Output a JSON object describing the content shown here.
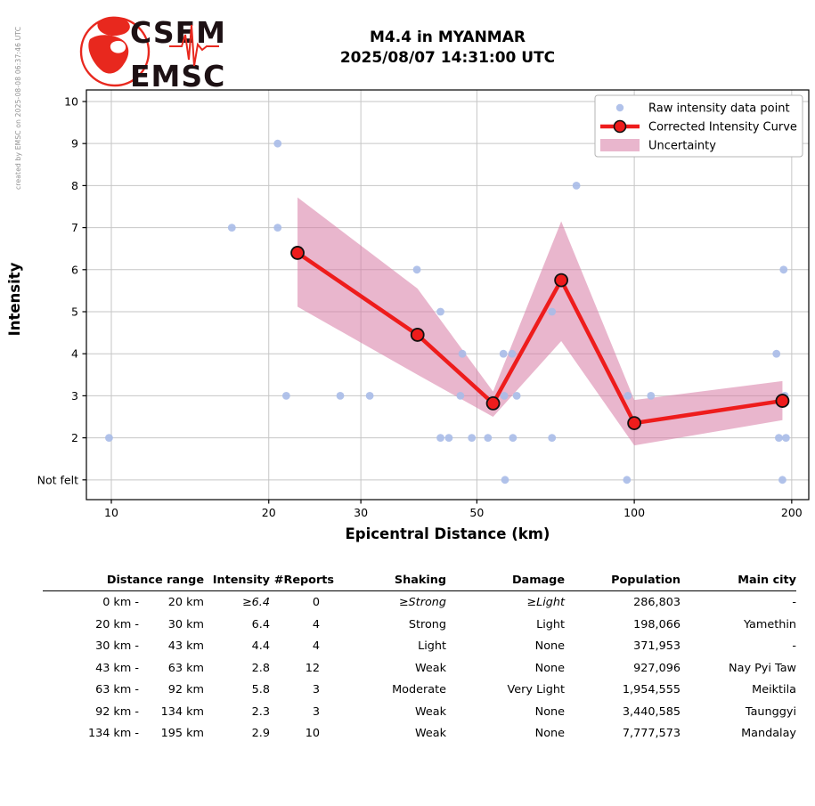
{
  "created_by": "created by EMSC on 2025-08-08 06:37:46 UTC",
  "logo": {
    "line1": "CSEM",
    "line2": "EMSC"
  },
  "title": {
    "line1": "M4.4 in MYANMAR",
    "line2": "2025/08/07 14:31:00 UTC"
  },
  "chart_data": {
    "type": "scatter",
    "title": "M4.4 in MYANMAR 2025/08/07 14:31:00 UTC",
    "xlabel": "Epicentral Distance (km)",
    "ylabel": "Intensity",
    "x_scale": "log",
    "x_ticks": [
      10,
      20,
      30,
      50,
      100,
      200
    ],
    "x_range": [
      8.96,
      215.6
    ],
    "y_range": [
      0.53,
      10.275
    ],
    "grid": true,
    "y_ticks": [
      {
        "value": 1,
        "label": "Not felt"
      },
      {
        "value": 2,
        "label": "2"
      },
      {
        "value": 3,
        "label": "3"
      },
      {
        "value": 4,
        "label": "4"
      },
      {
        "value": 5,
        "label": "5"
      },
      {
        "value": 6,
        "label": "6"
      },
      {
        "value": 7,
        "label": "7"
      },
      {
        "value": 8,
        "label": "8"
      },
      {
        "value": 9,
        "label": "9"
      },
      {
        "value": 10,
        "label": "10"
      }
    ],
    "not_felt_value": 1,
    "legend": {
      "position": "upper right",
      "items": [
        {
          "marker": "point",
          "label": "Raw intensity data point"
        },
        {
          "marker": "line",
          "label": "Corrected Intensity Curve"
        },
        {
          "marker": "patch",
          "label": "Uncertainty"
        }
      ]
    },
    "raw_points": [
      [
        9.9,
        2
      ],
      [
        17,
        7
      ],
      [
        20.8,
        7
      ],
      [
        20.8,
        9
      ],
      [
        21.6,
        3
      ],
      [
        27.4,
        3
      ],
      [
        31.2,
        3
      ],
      [
        38.4,
        6
      ],
      [
        42.6,
        2
      ],
      [
        42.6,
        5
      ],
      [
        44.2,
        2
      ],
      [
        46.5,
        3
      ],
      [
        46.9,
        4
      ],
      [
        48.9,
        2
      ],
      [
        52.5,
        2
      ],
      [
        56.2,
        4
      ],
      [
        56.4,
        3
      ],
      [
        56.6,
        1
      ],
      [
        58.4,
        4
      ],
      [
        58.6,
        2
      ],
      [
        59.6,
        3
      ],
      [
        69.6,
        2
      ],
      [
        69.6,
        5
      ],
      [
        77.5,
        8
      ],
      [
        96.8,
        1
      ],
      [
        97.2,
        3
      ],
      [
        107.6,
        3
      ],
      [
        187,
        4
      ],
      [
        189,
        2
      ],
      [
        192,
        1
      ],
      [
        193,
        6
      ],
      [
        194,
        3
      ],
      [
        195,
        2
      ]
    ],
    "corrected_curve": {
      "x": [
        22.7,
        38.5,
        53.7,
        72.5,
        100,
        192
      ],
      "y": [
        6.4,
        4.45,
        2.82,
        5.75,
        2.35,
        2.88
      ]
    },
    "uncertainty": {
      "x": [
        22.7,
        38.5,
        53.7,
        72.5,
        100,
        192
      ],
      "upper": [
        7.72,
        5.55,
        3.1,
        7.15,
        2.9,
        3.35
      ],
      "lower": [
        5.12,
        3.5,
        2.5,
        4.3,
        1.82,
        2.42
      ]
    },
    "colors": {
      "raw_point": "#a9bbe8",
      "curve": "#ee1c1c",
      "curve_marker_edge": "#111111",
      "uncertainty": "#d77aa4",
      "grid": "#c6c6c6",
      "logo_red": "#e8281e"
    }
  },
  "table": {
    "headers": [
      "Distance range",
      "Intensity",
      "#Reports",
      "Shaking",
      "Damage",
      "Population",
      "Main city"
    ],
    "rows": [
      {
        "from": "0 km",
        "to": "20 km",
        "intensity": "≥6.4",
        "reports": "0",
        "shaking": "≥Strong",
        "damage": "≥Light",
        "population": "286,803",
        "city": "-",
        "italic": true
      },
      {
        "from": "20 km",
        "to": "30 km",
        "intensity": "6.4",
        "reports": "4",
        "shaking": "Strong",
        "damage": "Light",
        "population": "198,066",
        "city": "Yamethin",
        "italic": false
      },
      {
        "from": "30 km",
        "to": "43 km",
        "intensity": "4.4",
        "reports": "4",
        "shaking": "Light",
        "damage": "None",
        "population": "371,953",
        "city": "-",
        "italic": false
      },
      {
        "from": "43 km",
        "to": "63 km",
        "intensity": "2.8",
        "reports": "12",
        "shaking": "Weak",
        "damage": "None",
        "population": "927,096",
        "city": "Nay Pyi Taw",
        "italic": false
      },
      {
        "from": "63 km",
        "to": "92 km",
        "intensity": "5.8",
        "reports": "3",
        "shaking": "Moderate",
        "damage": "Very Light",
        "population": "1,954,555",
        "city": "Meiktila",
        "italic": false
      },
      {
        "from": "92 km",
        "to": "134 km",
        "intensity": "2.3",
        "reports": "3",
        "shaking": "Weak",
        "damage": "None",
        "population": "3,440,585",
        "city": "Taunggyi",
        "italic": false
      },
      {
        "from": "134 km",
        "to": "195 km",
        "intensity": "2.9",
        "reports": "10",
        "shaking": "Weak",
        "damage": "None",
        "population": "7,777,573",
        "city": "Mandalay",
        "italic": false
      }
    ]
  }
}
